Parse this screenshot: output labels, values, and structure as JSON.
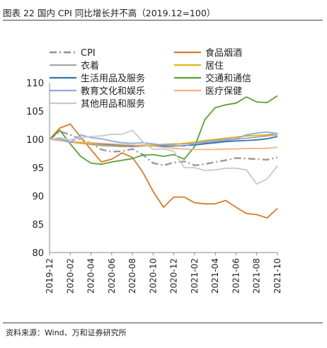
{
  "figure_title": "图表 22  国内 CPI  同比增长并不高（2019.12=100）",
  "source_text": "资料来源：Wind、万和证券研究所",
  "chart_data": {
    "type": "line",
    "title": "",
    "xlabel": "",
    "ylabel": "",
    "ylim": [
      80,
      110
    ],
    "yticks": [
      80,
      85,
      90,
      95,
      100,
      105,
      110
    ],
    "x": [
      "2019-12",
      "2020-01",
      "2020-02",
      "2020-03",
      "2020-04",
      "2020-05",
      "2020-06",
      "2020-07",
      "2020-08",
      "2020-09",
      "2020-10",
      "2020-11",
      "2020-12",
      "2021-01",
      "2021-02",
      "2021-03",
      "2021-04",
      "2021-05",
      "2021-06",
      "2021-07",
      "2021-08",
      "2021-09",
      "2021-10"
    ],
    "xtick_labels": [
      "2019-12",
      "2020-02",
      "2020-04",
      "2020-06",
      "2020-08",
      "2020-10",
      "2020-12",
      "2021-02",
      "2021-04",
      "2021-06",
      "2021-08",
      "2021-10"
    ],
    "grid": false,
    "legend_position": "top",
    "series": [
      {
        "name": "CPI",
        "color": "#999999",
        "dash": "dashdot",
        "width": 2.4,
        "values": [
          100,
          101.4,
          100.8,
          100.0,
          99.3,
          98.2,
          97.8,
          97.9,
          98.3,
          97.3,
          95.8,
          95.4,
          95.9,
          96.1,
          95.4,
          95.6,
          96.0,
          96.3,
          96.7,
          96.6,
          96.5,
          96.4,
          96.8
        ]
      },
      {
        "name": "食品烟酒",
        "color": "#D97A2B",
        "dash": "solid",
        "width": 1.8,
        "values": [
          100,
          102.0,
          102.7,
          100.4,
          98.2,
          96.0,
          96.5,
          97.6,
          96.8,
          94.2,
          90.8,
          88.0,
          89.8,
          89.8,
          88.8,
          88.6,
          88.6,
          89.2,
          88.0,
          86.9,
          86.7,
          86.1,
          87.8
        ]
      },
      {
        "name": "衣着",
        "color": "#A5A5A5",
        "dash": "solid",
        "width": 1.8,
        "values": [
          100,
          99.8,
          99.5,
          99.3,
          99.1,
          98.9,
          98.8,
          98.7,
          98.7,
          98.8,
          99.0,
          99.1,
          99.2,
          99.2,
          99.3,
          99.4,
          99.6,
          99.8,
          100.0,
          100.2,
          100.4,
          100.6,
          100.8
        ]
      },
      {
        "name": "居住",
        "color": "#E2B211",
        "dash": "solid",
        "width": 1.8,
        "values": [
          100,
          100.0,
          99.6,
          99.3,
          99.2,
          99.1,
          99.0,
          98.9,
          98.9,
          99.0,
          99.0,
          99.0,
          99.1,
          99.3,
          99.5,
          99.8,
          100.0,
          100.2,
          100.4,
          100.6,
          100.7,
          100.8,
          101.1
        ]
      },
      {
        "name": "交通和通信",
        "color": "#5BA033",
        "dash": "solid",
        "width": 1.8,
        "values": [
          100,
          101.6,
          99.2,
          97.0,
          95.8,
          95.6,
          96.0,
          96.3,
          96.6,
          97.2,
          97.3,
          97.0,
          97.3,
          96.5,
          98.7,
          103.5,
          105.6,
          106.1,
          106.4,
          107.5,
          106.6,
          106.5,
          107.7
        ]
      },
      {
        "name": "生活用品及服务",
        "color": "#2E75B6",
        "dash": "solid",
        "width": 1.8,
        "values": [
          100,
          100.0,
          99.6,
          99.5,
          99.4,
          99.2,
          99.1,
          99.0,
          98.9,
          98.9,
          98.8,
          98.8,
          98.8,
          98.9,
          99.0,
          99.2,
          99.4,
          99.6,
          99.7,
          99.8,
          99.9,
          100.1,
          100.5
        ]
      },
      {
        "name": "医疗保健",
        "color": "#F4B183",
        "dash": "solid",
        "width": 1.8,
        "values": [
          100,
          99.9,
          99.6,
          99.5,
          99.4,
          99.3,
          99.2,
          99.1,
          99.0,
          98.9,
          98.8,
          98.6,
          98.4,
          98.3,
          98.2,
          98.2,
          98.2,
          98.3,
          98.3,
          98.4,
          98.4,
          98.4,
          98.6
        ]
      },
      {
        "name": "教育文化和娱乐",
        "color": "#8FAADC",
        "dash": "solid",
        "width": 1.8,
        "values": [
          100,
          100.2,
          99.4,
          100.8,
          100.3,
          100.1,
          99.7,
          99.4,
          99.3,
          99.4,
          99.2,
          99.0,
          98.9,
          98.8,
          99.3,
          99.6,
          99.8,
          100.0,
          100.1,
          100.8,
          101.1,
          101.3,
          101.0
        ]
      },
      {
        "name": "其他用品和服务",
        "color": "#C9C9C9",
        "dash": "solid",
        "width": 1.8,
        "values": [
          100,
          100.3,
          99.9,
          100.3,
          100.5,
          100.6,
          100.9,
          100.9,
          101.6,
          99.6,
          98.2,
          98.3,
          97.9,
          95.0,
          95.0,
          94.5,
          94.6,
          94.9,
          94.9,
          94.6,
          92.1,
          93.0,
          95.3
        ]
      }
    ]
  }
}
